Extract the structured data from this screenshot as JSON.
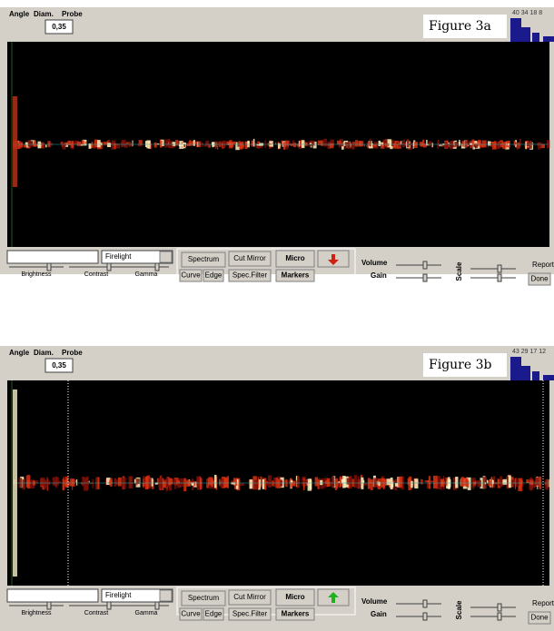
{
  "panels": [
    {
      "header": {
        "angle": "Angle",
        "diam": "Diam.",
        "probe": "Probe",
        "diam_value": "0,35"
      },
      "figure_label": "Figure 3a",
      "histogram_labels": "40 34 18 8",
      "controls": {
        "palette": "Firelight",
        "brightness": "Brightness",
        "contrast": "Contrast",
        "gamma": "Gamma",
        "spectrum": "Spectrum",
        "cut_mirror": "Cut Mirror",
        "micro": "Micro",
        "curve": "Curve",
        "edge": "Edge",
        "spec_filter": "Spec.Filter",
        "markers": "Markers",
        "volume": "Volume",
        "gain": "Gain",
        "scale": "Scale",
        "report": "Report",
        "done": "Done"
      }
    },
    {
      "header": {
        "angle": "Angle",
        "diam": "Diam.",
        "probe": "Probe",
        "diam_value": "0,35"
      },
      "figure_label": "Figure 3b",
      "histogram_labels": "43 29 17 12",
      "controls": {
        "palette": "Firelight",
        "brightness": "Brightness",
        "contrast": "Contrast",
        "gamma": "Gamma",
        "spectrum": "Spectrum",
        "cut_mirror": "Cut Mirror",
        "micro": "Micro",
        "curve": "Curve",
        "edge": "Edge",
        "spec_filter": "Spec.Filter",
        "markers": "Markers",
        "volume": "Volume",
        "gain": "Gain",
        "scale": "Scale",
        "report": "Report",
        "done": "Done"
      }
    }
  ]
}
